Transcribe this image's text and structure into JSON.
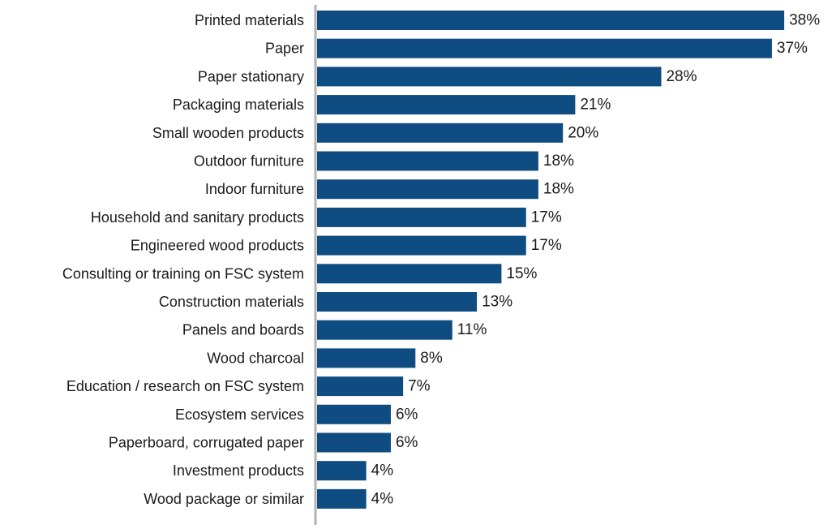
{
  "chart_data": {
    "type": "bar",
    "orientation": "horizontal",
    "categories": [
      "Printed materials",
      "Paper",
      "Paper stationary",
      "Packaging materials",
      "Small wooden products",
      "Outdoor furniture",
      "Indoor furniture",
      "Household and sanitary products",
      "Engineered wood products",
      "Consulting or training on FSC system",
      "Construction materials",
      "Panels and boards",
      "Wood charcoal",
      "Education / research on FSC system",
      "Ecosystem services",
      "Paperboard, corrugated paper",
      "Investment products",
      "Wood package or similar"
    ],
    "values": [
      38,
      37,
      28,
      21,
      20,
      18,
      18,
      17,
      17,
      15,
      13,
      11,
      8,
      7,
      6,
      6,
      4,
      4
    ],
    "value_labels": [
      "38%",
      "37%",
      "28%",
      "21%",
      "20%",
      "18%",
      "18%",
      "17%",
      "17%",
      "15%",
      "13%",
      "11%",
      "8%",
      "7%",
      "6%",
      "6%",
      "4%",
      "4%"
    ],
    "unit": "%",
    "xlim": [
      0,
      38
    ],
    "grid": false,
    "legend": "none",
    "bar_color": "#0f4c81",
    "axis_color": "#b3b3b3",
    "text_color": "#1a1a1a"
  }
}
